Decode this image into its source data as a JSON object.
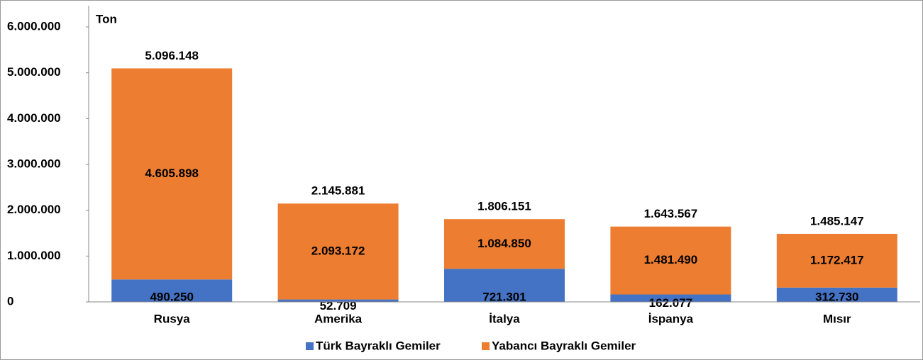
{
  "chart_data": {
    "type": "stacked-bar",
    "y_label": "Ton",
    "categories": [
      "Rusya",
      "Amerika",
      "İtalya",
      "İspanya",
      "Mısır"
    ],
    "series": [
      {
        "name": "Türk Bayraklı Gemiler",
        "color": "#4472c4",
        "values": [
          490250,
          52709,
          721301,
          162077,
          312730
        ],
        "value_labels": [
          "490.250",
          "52.709",
          "721.301",
          "162.077",
          "312.730"
        ]
      },
      {
        "name": "Yabancı Bayraklı Gemiler",
        "color": "#ed7d31",
        "values": [
          4605898,
          2093172,
          1084850,
          1481490,
          1172417
        ],
        "value_labels": [
          "4.605.898",
          "2.093.172",
          "1.084.850",
          "1.481.490",
          "1.172.417"
        ]
      }
    ],
    "totals": [
      {
        "value": 5096148,
        "label": "5.096.148"
      },
      {
        "value": 2145881,
        "label": "2.145.881"
      },
      {
        "value": 1806151,
        "label": "1.806.151"
      },
      {
        "value": 1643567,
        "label": "1.643.567"
      },
      {
        "value": 1485147,
        "label": "1.485.147"
      }
    ],
    "ylim": [
      0,
      6000000
    ],
    "yticks": [
      0,
      {
        "value": 1000000,
        "label": "1.000.000"
      },
      {
        "value": 2000000,
        "label": "2.000.000"
      },
      {
        "value": 3000000,
        "label": "3.000.000"
      },
      {
        "value": 4000000,
        "label": "4.000.000"
      },
      {
        "value": 5000000,
        "label": "5.000.000"
      },
      {
        "value": 6000000,
        "label": "6.000.000"
      }
    ],
    "legend": "bottom",
    "grid": false
  }
}
